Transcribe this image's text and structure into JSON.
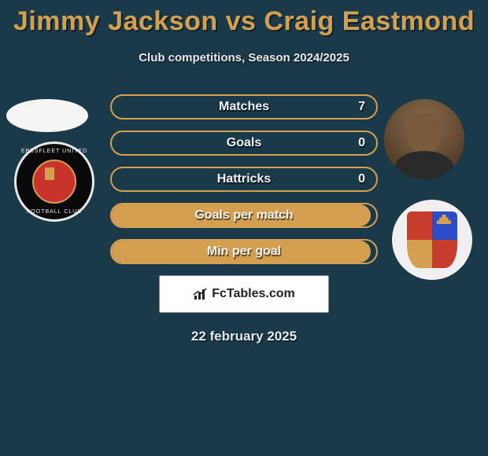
{
  "title": "Jimmy Jackson vs Craig Eastmond",
  "subtitle": "Club competitions, Season 2024/2025",
  "date": "22 february 2025",
  "logo": {
    "text": "FcTables.com"
  },
  "badge_left": {
    "text_top": "EBBSFLEET UNITED",
    "text_bot": "FOOTBALL CLUB"
  },
  "colors": {
    "background": "#1a3a4a",
    "title": "#d4a050",
    "subtitle": "#e8e8e8",
    "stat_border": "#d4a050",
    "stat_fill": "#d4a050",
    "stat_text": "#f0f0f0",
    "logo_bg": "#ffffff"
  },
  "stats": [
    {
      "label": "Matches",
      "value_left": null,
      "value_right": "7",
      "fill_pct": 0,
      "border_color": "#d4a050",
      "fill_color": "#d4a050"
    },
    {
      "label": "Goals",
      "value_left": null,
      "value_right": "0",
      "fill_pct": 0,
      "border_color": "#d4a050",
      "fill_color": "#d4a050"
    },
    {
      "label": "Hattricks",
      "value_left": null,
      "value_right": "0",
      "fill_pct": 0,
      "border_color": "#d4a050",
      "fill_color": "#d4a050"
    },
    {
      "label": "Goals per match",
      "value_left": null,
      "value_right": "",
      "fill_pct": 98,
      "border_color": "#d4a050",
      "fill_color": "#d4a050"
    },
    {
      "label": "Min per goal",
      "value_left": null,
      "value_right": "",
      "fill_pct": 98,
      "border_color": "#d4a050",
      "fill_color": "#d4a050"
    }
  ]
}
